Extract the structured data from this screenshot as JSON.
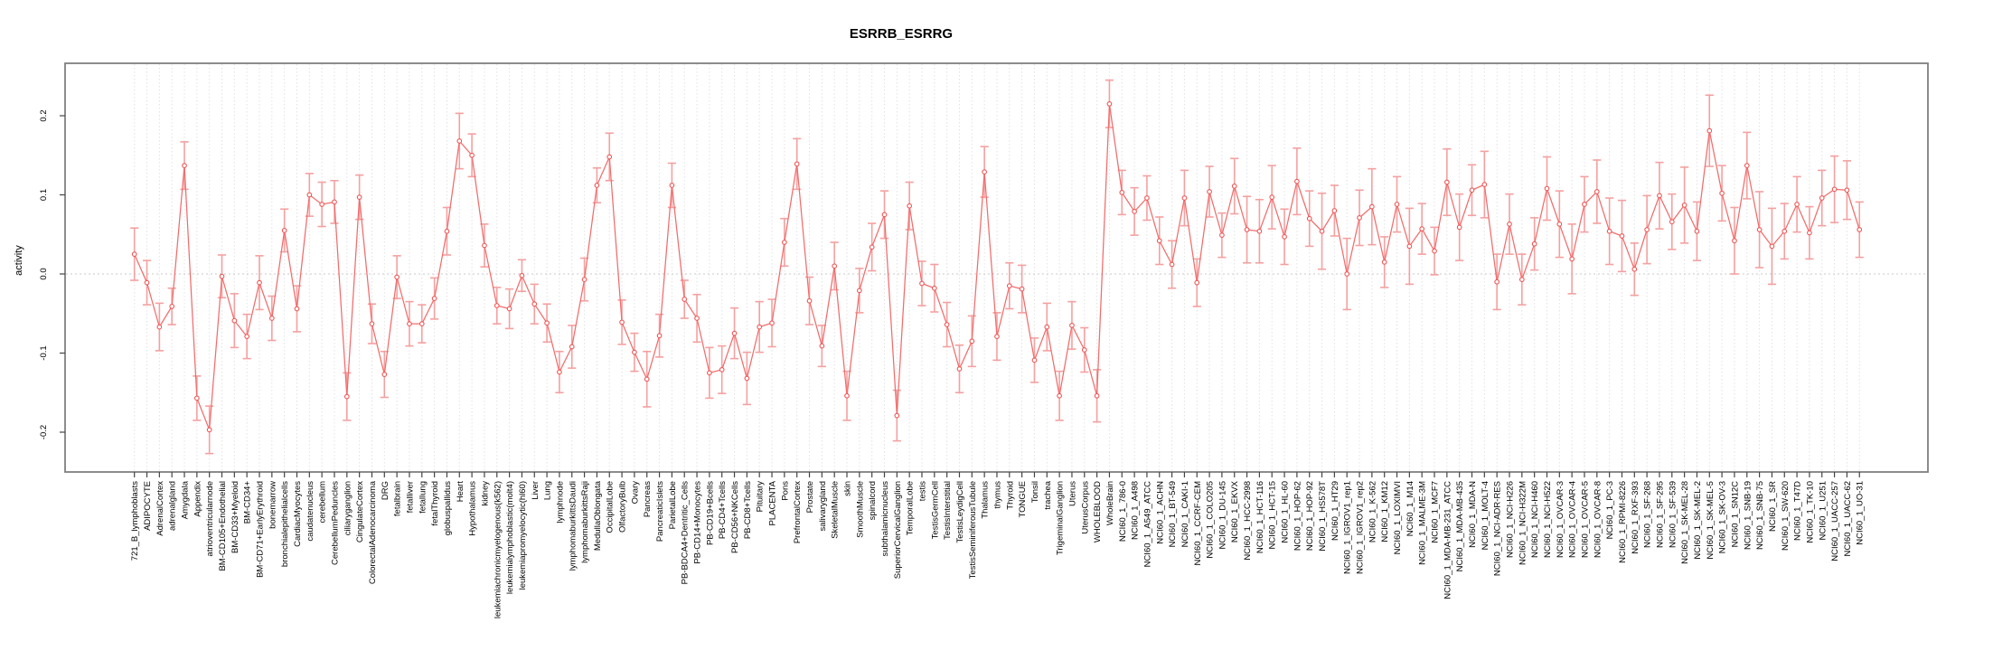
{
  "title": "ESRRB_ESRRG",
  "colors": {
    "line": "#f26c6c",
    "marker_stroke": "#ee5555",
    "error_bar": "#f5a0a0",
    "box_border": "#808080",
    "tick": "#444444",
    "grid_vertical": "#e2e2e2",
    "grid_zero": "#c8c8c8",
    "background": "#ffffff"
  },
  "chart_data": {
    "type": "line",
    "subtype": "point-line-with-error-bars",
    "title": "ESRRB_ESRRG",
    "xlabel": "",
    "ylabel": "activity",
    "ylim": [
      -0.25,
      0.266
    ],
    "yticks": [
      -0.2,
      -0.1,
      0.0,
      0.1,
      0.2
    ],
    "ytick_labels": [
      "-0.2",
      "-0.1",
      "0.0",
      "0.1",
      "0.2"
    ],
    "grid": "vertical dotted line per category; horizontal dotted line at 0",
    "legend_position": "none",
    "marker": "open-circle",
    "categories": [
      "721_B_lymphoblasts",
      "ADIPOCYTE",
      "AdrenalCortex",
      "adrenalgland",
      "Amygdala",
      "Appendix",
      "atrioventricularnode",
      "BM-CD105+Endothelial",
      "BM-CD33+Myeloid",
      "BM-CD34+",
      "BM-CD71+EarlyErythroid",
      "bonemarrow",
      "bronchialepithelialcells",
      "CardiacMyocytes",
      "caudatenucleus",
      "cerebellum",
      "CerebellumPeduncles",
      "ciliaryganglion",
      "CingulateCortex",
      "ColorectalAdenocarcinoma",
      "DRG",
      "fetalbrain",
      "fetalliver",
      "fetallung",
      "fetalThyroid",
      "globuspallidus",
      "Heart",
      "Hypothalamus",
      "kidney",
      "leukemiachronicmyelogenous(k562)",
      "leukemialymphoblastic(molt4)",
      "leukemiapromyelocytic(hl60)",
      "Liver",
      "Lung",
      "lymphnode",
      "lymphomaburkittsDaudi",
      "lymphomaburkittsRaji",
      "MedullaOblongata",
      "OccipitalLobe",
      "OlfactoryBulb",
      "Ovary",
      "Pancreas",
      "PancreaticIslets",
      "ParietalLobe",
      "PB-BDCA4+Dentritic_Cells",
      "PB-CD14+Monocytes",
      "PB-CD19+Bcells",
      "PB-CD4+Tcells",
      "PB-CD56+NKCells",
      "PB-CD8+Tcells",
      "Pituitary",
      "PLACENTA",
      "Pons",
      "PrefrontalCortex",
      "Prostate",
      "salivarygland",
      "SkeletalMuscle",
      "skin",
      "SmoothMuscle",
      "spinalcord",
      "subthalamicnucleus",
      "SuperiorCervicalGanglion",
      "TemporalLobe",
      "testis",
      "TestisGermCell",
      "TestisInterstitial",
      "TestisLeydigCell",
      "TestisSeminiferousTubule",
      "Thalamus",
      "thymus",
      "Thyroid",
      "TONGUE",
      "Tonsil",
      "trachea",
      "TrigeminalGanglion",
      "Uterus",
      "UterusCorpus",
      "WHOLEBLOOD",
      "WholeBrain",
      "NCI60_1_786-0",
      "NCI60_1_A498",
      "NCI60_1_A549_ATCC",
      "NCI60_1_ACHN",
      "NCI60_1_BT-549",
      "NCI60_1_CAKI-1",
      "NCI60_1_CCRF-CEM",
      "NCI60_1_COLO205",
      "NCI60_1_DU-145",
      "NCI60_1_EKVX",
      "NCI60_1_HCC-2998",
      "NCI60_1_HCT-116",
      "NCI60_1_HCT-15",
      "NCI60_1_HL-60",
      "NCI60_1_HOP-62",
      "NCI60_1_HOP-92",
      "NCI60_1_HS578T",
      "NCI60_1_HT29",
      "NCI60_1_IGROV1_rep1",
      "NCI60_1_IGROV1_rep2",
      "NCI60_1_K-562",
      "NCI60_1_KM12",
      "NCI60_1_LOXIMVI",
      "NCI60_1_M14",
      "NCI60_1_MALME-3M",
      "NCI60_1_MCF7",
      "NCI60_1_MDA-MB-231_ATCC",
      "NCI60_1_MDA-MB-435",
      "NCI60_1_MDA-N",
      "NCI60_1_MOLT-4",
      "NCI60_1_NCI-ADR-RES",
      "NCI60_1_NCI-H226",
      "NCI60_1_NCI-H322M",
      "NCI60_1_NCI-H460",
      "NCI60_1_NCI-H522",
      "NCI60_1_OVCAR-3",
      "NCI60_1_OVCAR-4",
      "NCI60_1_OVCAR-5",
      "NCI60_1_OVCAR-8",
      "NCI60_1_PC-3",
      "NCI60_1_RPMI-8226",
      "NCI60_1_RXF-393",
      "NCI60_1_SF-268",
      "NCI60_1_SF-295",
      "NCI60_1_SF-539",
      "NCI60_1_SK-MEL-28",
      "NCI60_1_SK-MEL-2",
      "NCI60_1_SK-MEL-5",
      "NCI60_1_SK-OV-3",
      "NCI60_1_SN12C",
      "NCI60_1_SNB-19",
      "NCI60_1_SNB-75",
      "NCI60_1_SR",
      "NCI60_1_SW-620",
      "NCI60_1_T47D",
      "NCI60_1_TK-10",
      "NCI60_1_U251",
      "NCI60_1_UACC-257",
      "NCI60_1_UACC-62",
      "NCI60_1_UO-31"
    ],
    "series": [
      {
        "name": "activity",
        "values": [
          0.025,
          -0.011,
          -0.067,
          -0.041,
          0.137,
          -0.157,
          -0.197,
          -0.003,
          -0.059,
          -0.079,
          -0.011,
          -0.056,
          0.055,
          -0.044,
          0.1,
          0.088,
          0.091,
          -0.155,
          0.097,
          -0.063,
          -0.127,
          -0.004,
          -0.063,
          -0.063,
          -0.031,
          0.054,
          0.168,
          0.15,
          0.036,
          -0.04,
          -0.044,
          -0.002,
          -0.038,
          -0.062,
          -0.124,
          -0.092,
          -0.007,
          0.112,
          0.148,
          -0.061,
          -0.099,
          -0.133,
          -0.078,
          0.112,
          -0.032,
          -0.056,
          -0.125,
          -0.121,
          -0.075,
          -0.132,
          -0.067,
          -0.062,
          0.04,
          0.139,
          -0.034,
          -0.091,
          0.01,
          -0.154,
          -0.021,
          0.034,
          0.075,
          -0.179,
          0.086,
          -0.012,
          -0.018,
          -0.064,
          -0.12,
          -0.085,
          0.129,
          -0.079,
          -0.015,
          -0.019,
          -0.109,
          -0.067,
          -0.154,
          -0.065,
          -0.096,
          -0.154,
          0.215,
          0.103,
          0.079,
          0.096,
          0.042,
          0.012,
          0.096,
          -0.011,
          0.104,
          0.049,
          0.111,
          0.056,
          0.054,
          0.097,
          0.047,
          0.117,
          0.07,
          0.054,
          0.08,
          0.0,
          0.071,
          0.085,
          0.015,
          0.088,
          0.035,
          0.057,
          0.029,
          0.116,
          0.059,
          0.106,
          0.113,
          -0.01,
          0.063,
          -0.007,
          0.038,
          0.108,
          0.063,
          0.019,
          0.088,
          0.104,
          0.054,
          0.048,
          0.006,
          0.056,
          0.099,
          0.066,
          0.087,
          0.054,
          0.181,
          0.102,
          0.042,
          0.137,
          0.056,
          0.035,
          0.054,
          0.088,
          0.052,
          0.096,
          0.107,
          0.106,
          0.056
        ],
        "errors": [
          0.033,
          0.028,
          0.03,
          0.023,
          0.03,
          0.028,
          0.03,
          0.027,
          0.034,
          0.028,
          0.034,
          0.028,
          0.027,
          0.029,
          0.027,
          0.028,
          0.027,
          0.03,
          0.028,
          0.025,
          0.029,
          0.027,
          0.028,
          0.024,
          0.026,
          0.03,
          0.035,
          0.027,
          0.027,
          0.023,
          0.025,
          0.02,
          0.025,
          0.024,
          0.026,
          0.027,
          0.027,
          0.022,
          0.03,
          0.028,
          0.024,
          0.035,
          0.027,
          0.028,
          0.024,
          0.03,
          0.032,
          0.03,
          0.032,
          0.033,
          0.032,
          0.03,
          0.03,
          0.032,
          0.03,
          0.026,
          0.03,
          0.031,
          0.028,
          0.03,
          0.03,
          0.032,
          0.03,
          0.028,
          0.03,
          0.028,
          0.03,
          0.032,
          0.032,
          0.03,
          0.029,
          0.03,
          0.028,
          0.03,
          0.031,
          0.03,
          0.028,
          0.033,
          0.03,
          0.028,
          0.03,
          0.028,
          0.03,
          0.03,
          0.035,
          0.03,
          0.032,
          0.028,
          0.035,
          0.042,
          0.04,
          0.04,
          0.035,
          0.042,
          0.035,
          0.048,
          0.032,
          0.045,
          0.035,
          0.048,
          0.032,
          0.035,
          0.048,
          0.032,
          0.03,
          0.042,
          0.042,
          0.032,
          0.042,
          0.035,
          0.038,
          0.032,
          0.033,
          0.04,
          0.042,
          0.044,
          0.035,
          0.04,
          0.042,
          0.045,
          0.033,
          0.043,
          0.042,
          0.035,
          0.048,
          0.037,
          0.045,
          0.035,
          0.042,
          0.042,
          0.048,
          0.048,
          0.035,
          0.035,
          0.033,
          0.035,
          0.042,
          0.037,
          0.035
        ]
      }
    ]
  }
}
